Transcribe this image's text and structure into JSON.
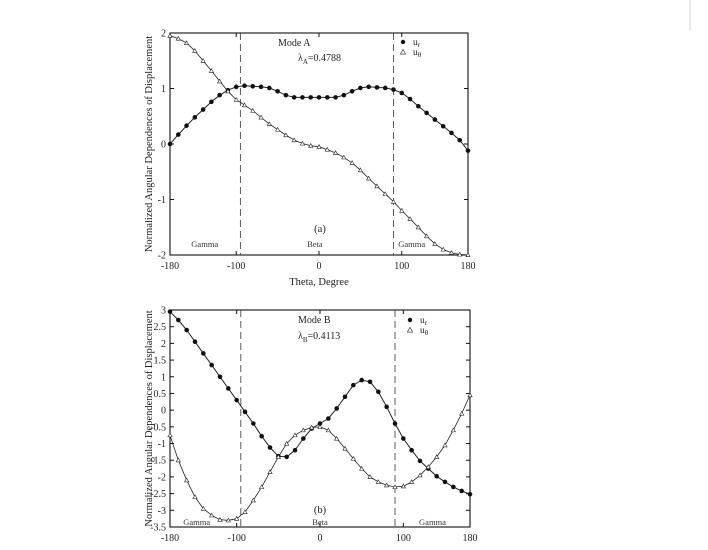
{
  "chart_data": [
    {
      "type": "line",
      "panel": "(a)",
      "mode_label": "Mode A",
      "lambda_label": "λ",
      "lambda_sub": "A",
      "lambda_value": "=0.4788",
      "xlabel": "Theta, Degree",
      "ylabel": "Normalized Angular Dependences of Displacement",
      "xlim": [
        -180,
        180
      ],
      "ylim": [
        -2,
        2
      ],
      "xticks": [
        -180,
        -100,
        0,
        100,
        180
      ],
      "yticks": [
        -2,
        -1,
        0,
        1,
        2
      ],
      "dividers": [
        -95,
        90
      ],
      "regions": [
        {
          "label": "Gamma",
          "x": -138
        },
        {
          "label": "Beta",
          "x": -5
        },
        {
          "label": "Gamma",
          "x": 112
        }
      ],
      "legend": [
        {
          "marker": "dot",
          "sym": "u",
          "sub": "r"
        },
        {
          "marker": "triangle",
          "sym": "u",
          "sub": "θ"
        }
      ],
      "series": [
        {
          "marker": "dot",
          "x": [
            -180,
            -170,
            -160,
            -150,
            -140,
            -130,
            -120,
            -110,
            -100,
            -90,
            -80,
            -70,
            -60,
            -50,
            -40,
            -30,
            -20,
            -10,
            0,
            10,
            20,
            30,
            40,
            50,
            60,
            70,
            80,
            90,
            100,
            110,
            120,
            130,
            140,
            150,
            160,
            170,
            180
          ],
          "y": [
            0.0,
            0.17,
            0.33,
            0.48,
            0.62,
            0.76,
            0.88,
            0.97,
            1.03,
            1.05,
            1.04,
            1.03,
            1.01,
            0.95,
            0.88,
            0.84,
            0.84,
            0.84,
            0.84,
            0.84,
            0.84,
            0.88,
            0.95,
            1.01,
            1.03,
            1.02,
            1.01,
            0.98,
            0.92,
            0.81,
            0.68,
            0.56,
            0.44,
            0.32,
            0.2,
            0.07,
            -0.12
          ]
        },
        {
          "marker": "triangle",
          "x": [
            -180,
            -170,
            -160,
            -150,
            -140,
            -130,
            -120,
            -110,
            -100,
            -90,
            -80,
            -70,
            -60,
            -50,
            -40,
            -30,
            -20,
            -10,
            0,
            10,
            20,
            30,
            40,
            50,
            60,
            70,
            80,
            90,
            100,
            110,
            120,
            130,
            140,
            150,
            160,
            170,
            180
          ],
          "y": [
            1.95,
            1.9,
            1.82,
            1.68,
            1.5,
            1.32,
            1.13,
            0.95,
            0.8,
            0.7,
            0.6,
            0.48,
            0.36,
            0.26,
            0.16,
            0.07,
            0.01,
            -0.03,
            -0.05,
            -0.1,
            -0.16,
            -0.24,
            -0.34,
            -0.47,
            -0.62,
            -0.76,
            -0.9,
            -1.04,
            -1.2,
            -1.35,
            -1.5,
            -1.66,
            -1.8,
            -1.9,
            -1.96,
            -1.99,
            -2.0
          ]
        }
      ]
    },
    {
      "type": "line",
      "panel": "(b)",
      "mode_label": "Mode B",
      "lambda_label": "λ",
      "lambda_sub": "B",
      "lambda_value": "=0.4113",
      "xlabel": "",
      "ylabel": "Normalized Angular Dependences of Displacement",
      "xlim": [
        -180,
        180
      ],
      "ylim": [
        -3.5,
        3
      ],
      "xticks": [
        -180,
        -100,
        0,
        100,
        180
      ],
      "yticks": [
        -3.5,
        -3,
        -2.5,
        -2,
        -1.5,
        -1,
        -0.5,
        0,
        0.5,
        1,
        1.5,
        2,
        2.5,
        3
      ],
      "ytick_labels": [
        "-3.5",
        "-3",
        "-2.5",
        "-2",
        "-1.5",
        "-1",
        "-0.5",
        "0",
        "0.5",
        "1",
        "1.5",
        "2",
        "2.5",
        "3"
      ],
      "dividers": [
        -95,
        90
      ],
      "regions": [
        {
          "label": "Gamma",
          "x": -148
        },
        {
          "label": "Beta",
          "x": 0
        },
        {
          "label": "Gamma",
          "x": 135
        }
      ],
      "legend": [
        {
          "marker": "dot",
          "sym": "u",
          "sub": "r"
        },
        {
          "marker": "triangle",
          "sym": "u",
          "sub": "θ"
        }
      ],
      "series": [
        {
          "marker": "dot",
          "x": [
            -180,
            -170,
            -160,
            -150,
            -140,
            -130,
            -120,
            -110,
            -100,
            -90,
            -80,
            -70,
            -60,
            -50,
            -40,
            -30,
            -20,
            -10,
            0,
            10,
            20,
            30,
            40,
            50,
            60,
            70,
            80,
            90,
            100,
            110,
            120,
            130,
            140,
            150,
            160,
            170,
            180
          ],
          "y": [
            2.95,
            2.7,
            2.4,
            2.05,
            1.7,
            1.35,
            1.0,
            0.65,
            0.3,
            -0.05,
            -0.4,
            -0.78,
            -1.12,
            -1.38,
            -1.4,
            -1.2,
            -0.85,
            -0.55,
            -0.4,
            -0.25,
            0.05,
            0.4,
            0.75,
            0.9,
            0.85,
            0.55,
            0.1,
            -0.4,
            -0.85,
            -1.2,
            -1.52,
            -1.75,
            -1.98,
            -2.15,
            -2.3,
            -2.42,
            -2.52
          ]
        },
        {
          "marker": "triangle",
          "x": [
            -180,
            -170,
            -160,
            -150,
            -140,
            -130,
            -120,
            -110,
            -100,
            -90,
            -80,
            -70,
            -60,
            -50,
            -40,
            -30,
            -20,
            -10,
            0,
            10,
            20,
            30,
            40,
            50,
            60,
            70,
            80,
            90,
            100,
            110,
            120,
            130,
            140,
            150,
            160,
            170,
            180
          ],
          "y": [
            -0.75,
            -1.5,
            -2.1,
            -2.6,
            -2.95,
            -3.15,
            -3.28,
            -3.3,
            -3.25,
            -3.05,
            -2.7,
            -2.3,
            -1.85,
            -1.4,
            -1.0,
            -0.75,
            -0.6,
            -0.52,
            -0.5,
            -0.6,
            -0.85,
            -1.15,
            -1.45,
            -1.75,
            -2.0,
            -2.15,
            -2.25,
            -2.3,
            -2.28,
            -2.15,
            -1.95,
            -1.7,
            -1.4,
            -1.05,
            -0.6,
            -0.1,
            0.45
          ]
        }
      ]
    }
  ]
}
